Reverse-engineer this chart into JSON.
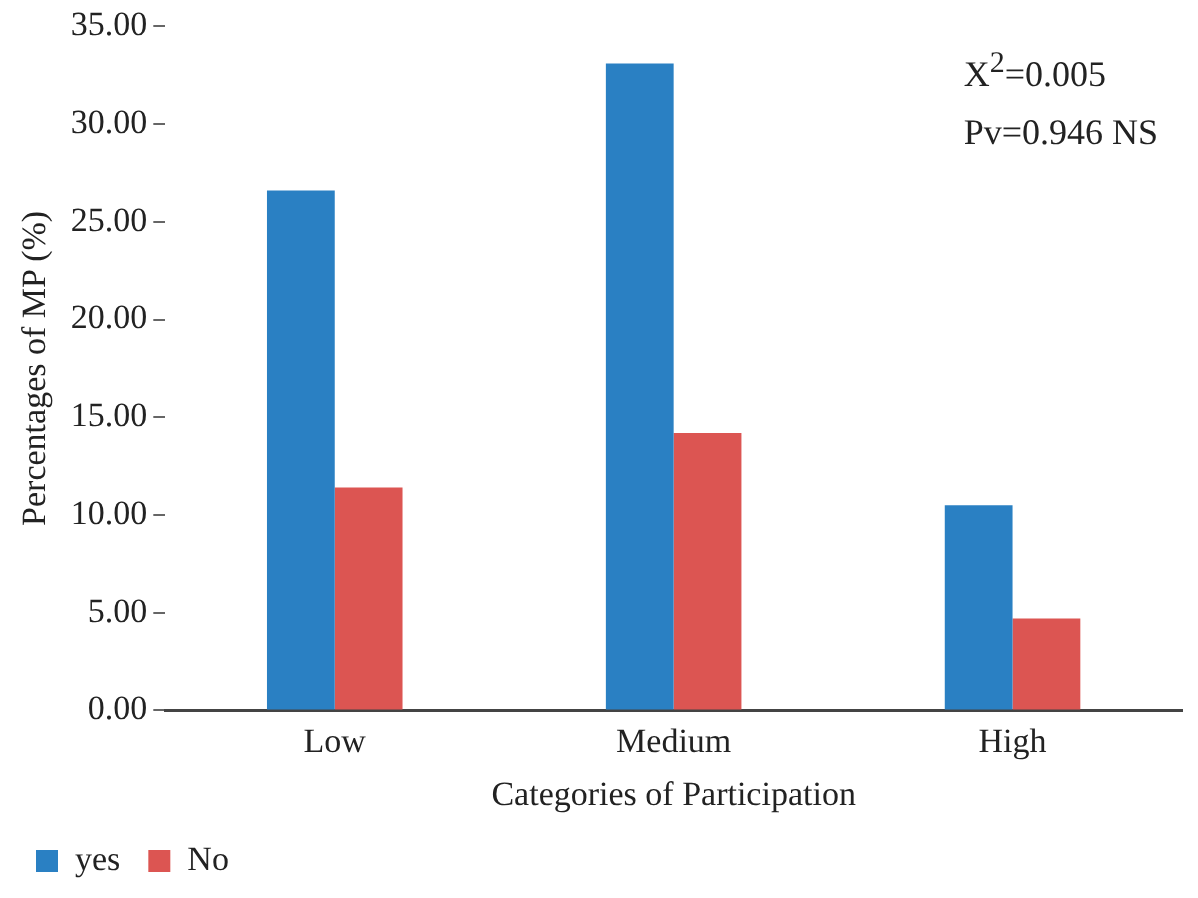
{
  "chart_data": {
    "type": "bar",
    "xlabel": "Categories of Participation",
    "ylabel": "Percentages of MP (%)",
    "categories": [
      "Low",
      "Medium",
      "High"
    ],
    "series": [
      {
        "name": "yes",
        "color": "#2a80c3",
        "values": [
          26.6,
          33.1,
          10.5
        ]
      },
      {
        "name": "No",
        "color": "#dc5552",
        "values": [
          11.4,
          14.2,
          4.7
        ]
      }
    ],
    "ylim": [
      0,
      35
    ],
    "yticks": [
      {
        "value": 0,
        "label": "0.00"
      },
      {
        "value": 5,
        "label": "5.00"
      },
      {
        "value": 10,
        "label": "10.00"
      },
      {
        "value": 15,
        "label": "15.00"
      },
      {
        "value": 20,
        "label": "20.00"
      },
      {
        "value": 25,
        "label": "25.00"
      },
      {
        "value": 30,
        "label": "30.00"
      },
      {
        "value": 35,
        "label": "35.00"
      }
    ],
    "grid": false,
    "legend": "bottom left",
    "annotations": [
      "X$^{2}$=0.005",
      "Pv=0.946 NS"
    ]
  }
}
